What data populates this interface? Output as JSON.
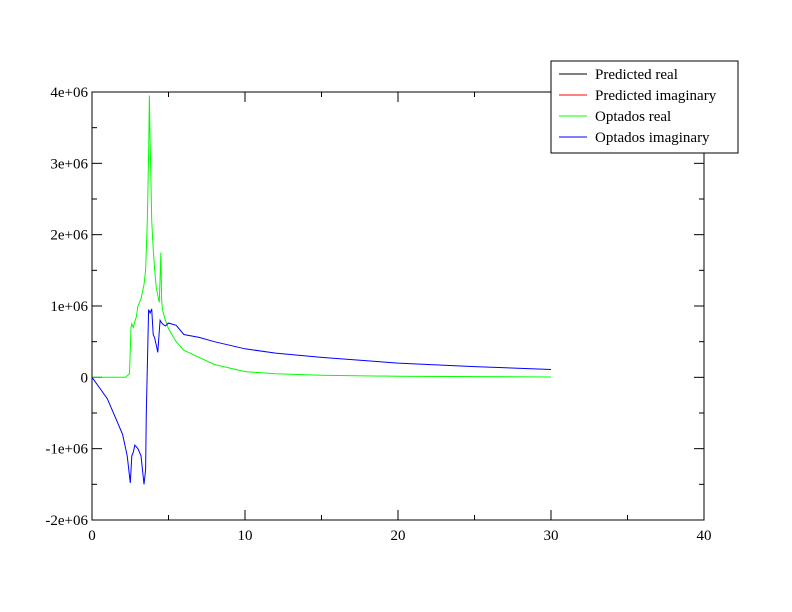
{
  "chart_data": {
    "type": "line",
    "xlim": [
      0,
      40
    ],
    "ylim": [
      -2000000,
      4000000
    ],
    "x_ticks": [
      0,
      10,
      20,
      30,
      40
    ],
    "x_tick_labels": [
      "0",
      "10",
      "20",
      "30",
      "40"
    ],
    "y_ticks": [
      -2000000,
      -1000000,
      0,
      1000000,
      2000000,
      3000000,
      4000000
    ],
    "y_tick_labels": [
      "-2e+06",
      "-1e+06",
      "0",
      "1e+06",
      "2e+06",
      "3e+06",
      "4e+06"
    ],
    "grid": false,
    "legend_position": "top-right",
    "series": [
      {
        "name": "Predicted real",
        "color": "#000000",
        "x": [],
        "y": []
      },
      {
        "name": "Predicted imaginary",
        "color": "#ff0000",
        "x": [],
        "y": []
      },
      {
        "name": "Optados real",
        "color": "#00ff00",
        "x": [
          0,
          1,
          2.2,
          2.45,
          2.55,
          2.6,
          2.7,
          2.8,
          2.9,
          3.0,
          3.2,
          3.4,
          3.5,
          3.6,
          3.65,
          3.7,
          3.75,
          3.8,
          3.85,
          3.9,
          4.0,
          4.1,
          4.2,
          4.3,
          4.4,
          4.45,
          4.5,
          4.55,
          4.6,
          4.8,
          5.0,
          5.5,
          6.0,
          7.0,
          8.0,
          10.0,
          12.0,
          15.0,
          20.0,
          25.0,
          30.0
        ],
        "y": [
          0,
          0,
          0,
          50000,
          700000,
          750000,
          700000,
          780000,
          850000,
          1000000,
          1100000,
          1300000,
          1500000,
          2100000,
          2500000,
          3150000,
          3950000,
          3300000,
          2800000,
          2200000,
          1800000,
          1500000,
          1250000,
          1150000,
          1050000,
          1400000,
          1750000,
          1100000,
          950000,
          800000,
          680000,
          500000,
          380000,
          280000,
          180000,
          80000,
          50000,
          30000,
          15000,
          10000,
          5000
        ]
      },
      {
        "name": "Optados imaginary",
        "color": "#0000ff",
        "x": [
          0,
          0.5,
          1.0,
          1.5,
          2.0,
          2.3,
          2.5,
          2.6,
          2.7,
          2.8,
          3.0,
          3.2,
          3.4,
          3.5,
          3.55,
          3.6,
          3.7,
          3.8,
          3.9,
          4.0,
          4.1,
          4.2,
          4.3,
          4.4,
          4.45,
          4.5,
          4.6,
          4.8,
          5.0,
          5.5,
          6.0,
          7.0,
          8.0,
          10.0,
          12.0,
          15.0,
          20.0,
          25.0,
          30.0
        ],
        "y": [
          0,
          -150000,
          -300000,
          -550000,
          -800000,
          -1100000,
          -1480000,
          -1100000,
          -1050000,
          -950000,
          -1000000,
          -1100000,
          -1500000,
          -1300000,
          -500000,
          0,
          950000,
          900000,
          960000,
          600000,
          550000,
          450000,
          350000,
          650000,
          800000,
          780000,
          750000,
          720000,
          760000,
          730000,
          600000,
          560000,
          500000,
          400000,
          340000,
          280000,
          200000,
          150000,
          110000
        ]
      }
    ]
  }
}
